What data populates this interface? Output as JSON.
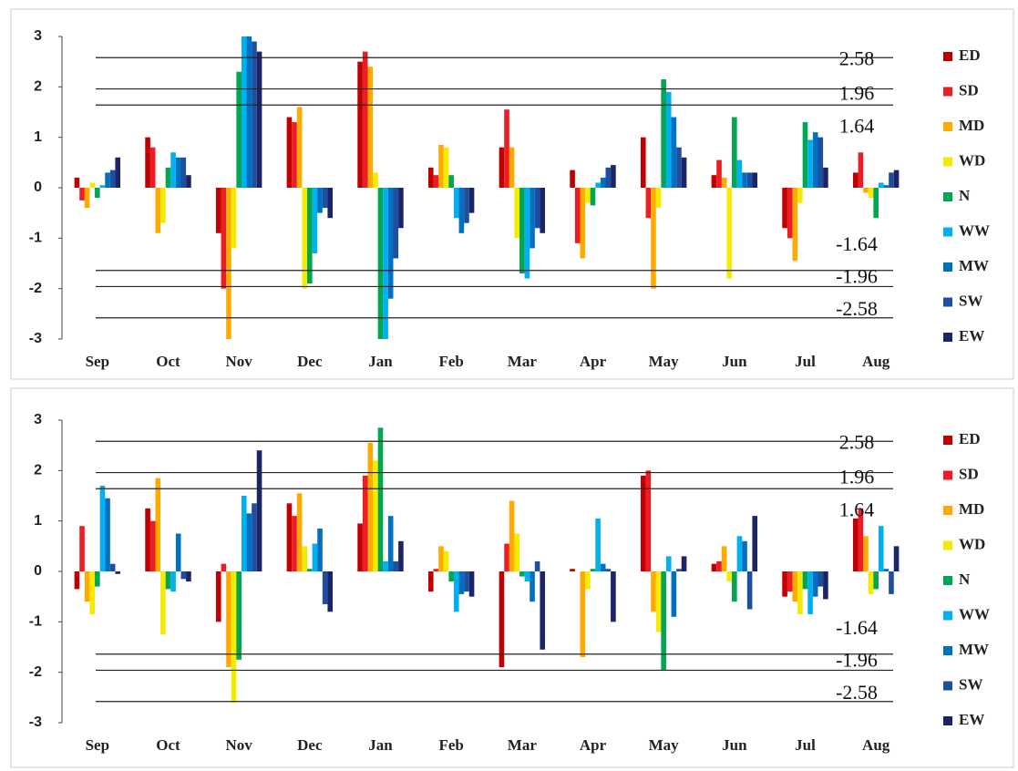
{
  "chart_data": [
    {
      "type": "bar",
      "categories": [
        "Sep",
        "Oct",
        "Nov",
        "Dec",
        "Jan",
        "Feb",
        "Mar",
        "Apr",
        "May",
        "Jun",
        "Jul",
        "Aug"
      ],
      "ylim": [
        -3,
        3
      ],
      "yticks": [
        -3,
        -2,
        -1,
        0,
        1,
        2,
        3
      ],
      "ref_lines": [
        2.58,
        1.96,
        1.64,
        -1.64,
        -1.96,
        -2.58
      ],
      "series": [
        {
          "name": "ED",
          "color": "#c00000",
          "values": [
            0.2,
            1.0,
            -0.9,
            1.4,
            2.5,
            0.4,
            0.8,
            0.35,
            1.0,
            0.25,
            -0.8,
            0.3
          ]
        },
        {
          "name": "SD",
          "color": "#ee1c25",
          "values": [
            -0.25,
            0.8,
            -2.0,
            1.3,
            2.7,
            0.25,
            1.55,
            -1.1,
            -0.6,
            0.55,
            -1.0,
            0.7
          ]
        },
        {
          "name": "MD",
          "color": "#ffaa00",
          "values": [
            -0.4,
            -0.9,
            -3.0,
            1.6,
            2.4,
            0.85,
            0.8,
            -1.4,
            -2.0,
            0.2,
            -1.45,
            -0.1
          ]
        },
        {
          "name": "WD",
          "color": "#f5eb00",
          "values": [
            0.1,
            -0.7,
            -1.2,
            -2.0,
            0.3,
            0.8,
            -1.0,
            -0.3,
            -0.4,
            -1.8,
            -0.3,
            -0.2
          ]
        },
        {
          "name": "N",
          "color": "#00a651",
          "values": [
            -0.2,
            0.4,
            2.3,
            -1.9,
            -3.0,
            0.25,
            -1.7,
            -0.35,
            2.15,
            1.4,
            1.3,
            -0.6
          ]
        },
        {
          "name": "WW",
          "color": "#00b0f0",
          "values": [
            0.05,
            0.7,
            3.0,
            -1.3,
            -3.0,
            -0.6,
            -1.8,
            0.1,
            1.9,
            0.55,
            0.95,
            0.1
          ]
        },
        {
          "name": "MW",
          "color": "#0070c0",
          "values": [
            0.3,
            0.6,
            3.0,
            -0.5,
            -2.2,
            -0.9,
            -1.2,
            0.2,
            1.4,
            0.3,
            1.1,
            0.05
          ]
        },
        {
          "name": "SW",
          "color": "#1f4e9f",
          "values": [
            0.35,
            0.6,
            2.9,
            -0.4,
            -1.4,
            -0.7,
            -0.8,
            0.4,
            0.8,
            0.3,
            1.0,
            0.3
          ]
        },
        {
          "name": "EW",
          "color": "#1b2466",
          "values": [
            0.6,
            0.25,
            2.7,
            -0.6,
            -0.8,
            -0.5,
            -0.9,
            0.45,
            0.6,
            0.3,
            0.4,
            0.35
          ]
        }
      ]
    },
    {
      "type": "bar",
      "categories": [
        "Sep",
        "Oct",
        "Nov",
        "Dec",
        "Jan",
        "Feb",
        "Mar",
        "Apr",
        "May",
        "Jun",
        "Jul",
        "Aug"
      ],
      "ylim": [
        -3,
        3
      ],
      "yticks": [
        -3,
        -2,
        -1,
        0,
        1,
        2,
        3
      ],
      "ref_lines": [
        2.58,
        1.96,
        1.64,
        -1.64,
        -1.96,
        -2.58
      ],
      "series": [
        {
          "name": "ED",
          "color": "#c00000",
          "values": [
            -0.35,
            1.25,
            -1.0,
            1.35,
            0.95,
            -0.4,
            -1.9,
            0.05,
            1.9,
            0.15,
            -0.5,
            1.05
          ]
        },
        {
          "name": "SD",
          "color": "#ee1c25",
          "values": [
            0.9,
            1.0,
            0.15,
            1.1,
            1.9,
            0.05,
            0.55,
            0.0,
            2.0,
            0.2,
            -0.4,
            1.25
          ]
        },
        {
          "name": "MD",
          "color": "#ffaa00",
          "values": [
            -0.6,
            1.85,
            -1.9,
            1.55,
            2.55,
            0.5,
            1.4,
            -1.7,
            -0.8,
            0.5,
            -0.6,
            0.7
          ]
        },
        {
          "name": "WD",
          "color": "#f5eb00",
          "values": [
            -0.85,
            -1.25,
            -2.6,
            0.5,
            2.2,
            0.4,
            0.75,
            -0.35,
            -1.2,
            -0.2,
            -0.85,
            -0.45
          ]
        },
        {
          "name": "N",
          "color": "#00a651",
          "values": [
            -0.3,
            -0.35,
            -1.75,
            0.05,
            2.85,
            -0.2,
            -0.1,
            0.05,
            -1.95,
            -0.6,
            -0.35,
            -0.35
          ]
        },
        {
          "name": "WW",
          "color": "#00b0f0",
          "values": [
            1.7,
            -0.4,
            1.5,
            0.55,
            0.2,
            -0.8,
            -0.2,
            1.05,
            0.3,
            0.7,
            -0.85,
            0.9
          ]
        },
        {
          "name": "MW",
          "color": "#0070c0",
          "values": [
            1.45,
            0.75,
            1.15,
            0.85,
            1.1,
            -0.45,
            -0.6,
            0.15,
            -0.9,
            0.6,
            -0.5,
            0.05
          ]
        },
        {
          "name": "SW",
          "color": "#1f4e9f",
          "values": [
            0.15,
            -0.15,
            1.35,
            -0.65,
            0.2,
            -0.4,
            0.2,
            0.05,
            0.05,
            -0.75,
            -0.3,
            -0.45
          ]
        },
        {
          "name": "EW",
          "color": "#1b2466",
          "values": [
            -0.05,
            -0.2,
            2.4,
            -0.8,
            0.6,
            -0.5,
            -1.55,
            -1.0,
            0.3,
            1.1,
            -0.55,
            0.5
          ]
        }
      ]
    }
  ]
}
